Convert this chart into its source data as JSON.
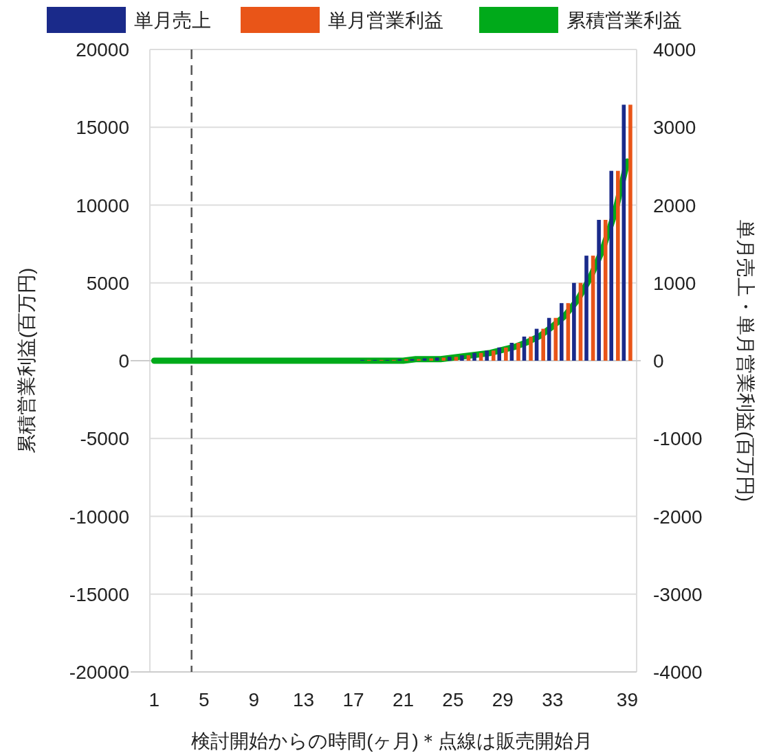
{
  "chart_data": {
    "type": "bar",
    "xlabel": "検討開始からの時間(ヶ月)＊点線は販売開始月",
    "ylabel": "累積営業利益(百万円)",
    "y2label": "単月売上・単月営業利益(百万円)",
    "x": [
      1,
      2,
      3,
      4,
      5,
      6,
      7,
      8,
      9,
      10,
      11,
      12,
      13,
      14,
      15,
      16,
      17,
      18,
      19,
      20,
      21,
      22,
      23,
      24,
      25,
      26,
      27,
      28,
      29,
      30,
      31,
      32,
      33,
      34,
      35,
      36,
      37,
      38,
      39
    ],
    "xlim": [
      0.65,
      39.75
    ],
    "xticks": [
      1,
      5,
      9,
      13,
      17,
      21,
      25,
      29,
      33,
      39
    ],
    "ylim": [
      -20000,
      20000
    ],
    "yticks": [
      -20000,
      -15000,
      -10000,
      -5000,
      0,
      5000,
      10000,
      15000,
      20000
    ],
    "y2lim": [
      -4000,
      4000
    ],
    "y2ticks": [
      -4000,
      -3000,
      -2000,
      -1000,
      0,
      1000,
      2000,
      3000,
      4000
    ],
    "grid": "y",
    "legend": "top",
    "series": [
      {
        "name": "単月売上",
        "axis": "y2",
        "color": "#1a2a8a",
        "values": [
          0,
          0,
          0,
          0,
          0,
          0,
          0,
          0,
          0,
          0,
          0,
          0,
          0,
          0,
          0,
          0,
          0,
          10,
          10,
          10,
          20,
          20,
          30,
          40,
          50,
          70,
          100,
          130,
          170,
          230,
          310,
          410,
          550,
          740,
          1000,
          1350,
          1810,
          2440,
          3290
        ]
      },
      {
        "name": "単月営業利益",
        "axis": "y2",
        "color": "#e95518",
        "values": [
          0,
          0,
          0,
          0,
          0,
          0,
          0,
          0,
          0,
          0,
          0,
          0,
          0,
          0,
          0,
          0,
          0,
          10,
          10,
          10,
          20,
          20,
          30,
          40,
          50,
          70,
          100,
          130,
          170,
          230,
          310,
          410,
          550,
          740,
          1000,
          1350,
          1810,
          2440,
          3290
        ]
      },
      {
        "name": "累積営業利益",
        "type": "line",
        "axis": "y",
        "color": "#00aa1a",
        "line_style": "solid",
        "values": [
          0,
          0,
          0,
          0,
          0,
          0,
          0,
          0,
          0,
          0,
          0,
          0,
          0,
          0,
          0,
          0,
          0,
          0,
          0,
          0,
          0,
          100,
          100,
          100,
          200,
          300,
          400,
          500,
          700,
          900,
          1200,
          1600,
          2200,
          2900,
          3900,
          5300,
          7100,
          9500,
          12800
        ]
      }
    ],
    "ref_lines": [
      {
        "axis": "x",
        "value": 4,
        "color": "#555555",
        "line_style": "dashed"
      }
    ]
  }
}
